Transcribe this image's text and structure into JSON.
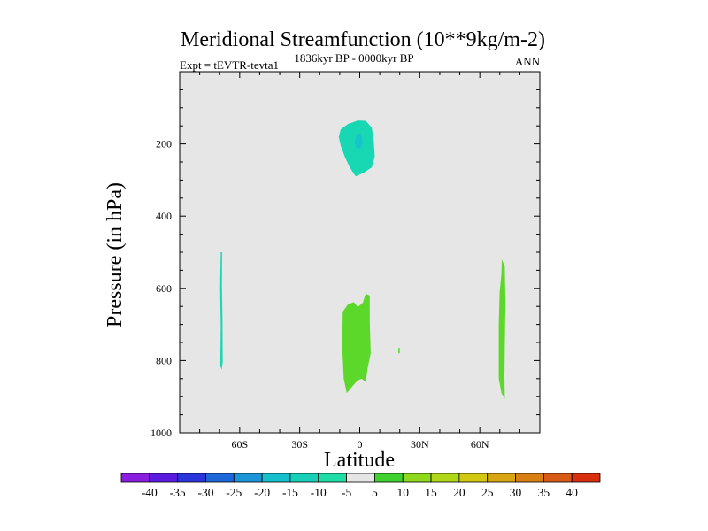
{
  "chart_data": {
    "type": "contour",
    "title": "Meridional Streamfunction (10**9kg/m-2)",
    "subtitle_left": "Expt = tEVTR-tevta1",
    "subtitle_center": "1836kyr BP - 0000kyr BP",
    "subtitle_right": "ANN",
    "xlabel": "Latitude",
    "ylabel": "Pressure (in hPa)",
    "xlim": [
      -90,
      90
    ],
    "ylim": [
      0,
      1000
    ],
    "y_inverted": true,
    "x_ticks": [
      {
        "value": -60,
        "label": "60S"
      },
      {
        "value": -30,
        "label": "30S"
      },
      {
        "value": 0,
        "label": "0"
      },
      {
        "value": 30,
        "label": "30N"
      },
      {
        "value": 60,
        "label": "60N"
      }
    ],
    "y_ticks": [
      {
        "value": 200,
        "label": "200"
      },
      {
        "value": 400,
        "label": "400"
      },
      {
        "value": 600,
        "label": "600"
      },
      {
        "value": 800,
        "label": "800"
      },
      {
        "value": 1000,
        "label": "1000"
      }
    ],
    "background_color": "#e6e6e6",
    "regions": [
      {
        "name": "upper-tropical-negative-cell",
        "range": "-10 to -5",
        "color": "#18d7b3",
        "points": [
          [
            -10.5,
            181
          ],
          [
            -9.5,
            160
          ],
          [
            -6,
            145
          ],
          [
            -1,
            135
          ],
          [
            3,
            136
          ],
          [
            6,
            155
          ],
          [
            7,
            190
          ],
          [
            7.5,
            235
          ],
          [
            6,
            265
          ],
          [
            2,
            280
          ],
          [
            -2,
            290
          ],
          [
            -3,
            282
          ],
          [
            -5,
            265
          ],
          [
            -7.5,
            235
          ],
          [
            -9.5,
            205
          ]
        ]
      },
      {
        "name": "upper-tropical-core",
        "range": "-15 to -10",
        "color": "#15c4cc",
        "points": [
          [
            -2.5,
            197
          ],
          [
            -1.5,
            172
          ],
          [
            0.5,
            172
          ],
          [
            1.5,
            195
          ],
          [
            0.5,
            212
          ],
          [
            -1.5,
            212
          ]
        ]
      },
      {
        "name": "southern-high-latitude-negative-cell",
        "range": "-10 to -5",
        "color": "#18d7b3",
        "points": [
          [
            -69.5,
            500
          ],
          [
            -68.8,
            500
          ],
          [
            -68.9,
            592
          ],
          [
            -68.6,
            690
          ],
          [
            -68.5,
            805
          ],
          [
            -69.0,
            825
          ],
          [
            -69.7,
            815
          ],
          [
            -69.5,
            705
          ],
          [
            -69.8,
            600
          ]
        ]
      },
      {
        "name": "lower-tropical-positive-cell",
        "range": "5 to 10",
        "color": "#5bd82a",
        "points": [
          [
            -8.5,
            665
          ],
          [
            -6,
            645
          ],
          [
            -3,
            638
          ],
          [
            -1,
            652
          ],
          [
            1.5,
            640
          ],
          [
            3,
            615
          ],
          [
            5,
            620
          ],
          [
            5,
            690
          ],
          [
            5.5,
            780
          ],
          [
            4,
            820
          ],
          [
            3,
            860
          ],
          [
            1,
            850
          ],
          [
            -1,
            855
          ],
          [
            -3.5,
            870
          ],
          [
            -6.5,
            890
          ],
          [
            -8,
            850
          ],
          [
            -8.8,
            760
          ]
        ]
      },
      {
        "name": "lower-tropical-small-patch",
        "range": "5 to 10",
        "color": "#5bd82a",
        "points": [
          [
            19.3,
            765
          ],
          [
            20,
            765
          ],
          [
            20,
            780
          ],
          [
            19.3,
            780
          ]
        ]
      },
      {
        "name": "northern-high-latitude-positive-cell",
        "range": "5 to 10",
        "color": "#5bd82a",
        "points": [
          [
            71,
            520
          ],
          [
            72.5,
            540
          ],
          [
            72.8,
            640
          ],
          [
            72.5,
            760
          ],
          [
            72.3,
            845
          ],
          [
            72.5,
            905
          ],
          [
            70.8,
            890
          ],
          [
            69.5,
            850
          ],
          [
            69.5,
            700
          ],
          [
            69.9,
            610
          ],
          [
            70.8,
            560
          ]
        ]
      }
    ]
  },
  "colorbar": {
    "labels": [
      "-40",
      "-35",
      "-30",
      "-25",
      "-20",
      "-15",
      "-10",
      "-5",
      "5",
      "10",
      "15",
      "20",
      "25",
      "30",
      "35",
      "40"
    ],
    "colors": [
      "#8a1ee0",
      "#5b1ce0",
      "#2a35db",
      "#1c68d8",
      "#1c95d8",
      "#15c0cc",
      "#18d0b8",
      "#20dca6",
      "#e6e6e6",
      "#3fd130",
      "#8ed91c",
      "#b0d818",
      "#d2c812",
      "#d8a612",
      "#d87f14",
      "#d75a16",
      "#d8300f"
    ]
  }
}
